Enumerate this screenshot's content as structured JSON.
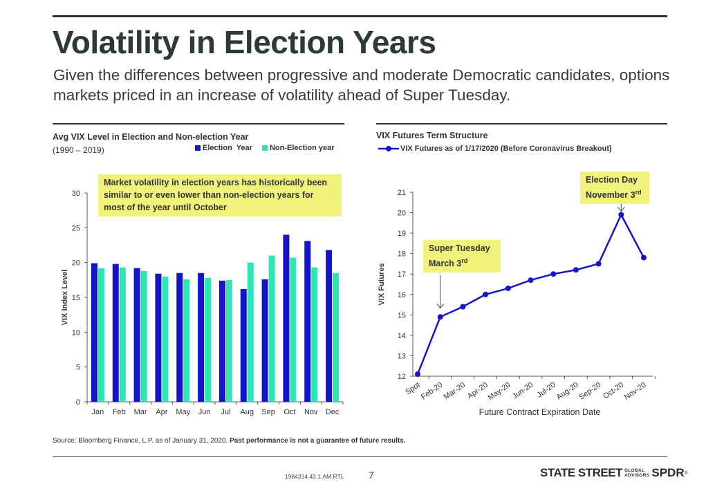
{
  "page": {
    "title": "Volatility in Election Years",
    "subtitle": "Given the differences between progressive and moderate Democratic candidates, options markets priced in an increase of volatility ahead of Super Tuesday.",
    "source": "Source: Bloomberg Finance, L.P. as of January 31, 2020. ",
    "disclaimer": "Past performance is not a guarantee of future results.",
    "doc_id": "1984314.43.1.AM.RTL",
    "page_number": "7",
    "brand": {
      "state_street": "STATE STREET",
      "global": "GLOBAL",
      "advisors": "ADVISORS",
      "spdr": "SPDR",
      "reg": "®"
    }
  },
  "colors": {
    "election": "#1414c8",
    "non_election": "#2de6b4",
    "line": "#1414c8",
    "callout": "#f0f27c",
    "title": "#2b3a33"
  },
  "chart_data": [
    {
      "type": "bar",
      "title": "Avg VIX Level in Election and Non-election Year",
      "subtitle": "(1990 – 2019)",
      "ylabel": "VIX Index Level",
      "xlabel": "",
      "ylim": [
        0,
        30
      ],
      "yticks": [
        0,
        5,
        10,
        15,
        20,
        25,
        30
      ],
      "legend_position": "top-right",
      "categories": [
        "Jan",
        "Feb",
        "Mar",
        "Apr",
        "May",
        "Jun",
        "Jul",
        "Aug",
        "Sep",
        "Oct",
        "Nov",
        "Dec"
      ],
      "series": [
        {
          "name": "Election  Year",
          "color": "#1414c8",
          "values": [
            19.9,
            19.8,
            19.2,
            18.4,
            18.5,
            18.5,
            17.4,
            16.2,
            17.6,
            24.0,
            23.1,
            21.8
          ]
        },
        {
          "name": "Non-Election year",
          "color": "#2de6b4",
          "values": [
            19.2,
            19.3,
            18.8,
            18.0,
            17.6,
            17.8,
            17.5,
            20.0,
            21.0,
            20.7,
            19.3,
            18.5
          ]
        }
      ],
      "annotation": "Market volatility in election years has historically been similar to or even lower than non-election years for most of the year until October"
    },
    {
      "type": "line",
      "title": "VIX Futures Term Structure",
      "xlabel": "Future Contract Expiration Date",
      "ylabel": "VIX Futures",
      "ylim": [
        12,
        21
      ],
      "yticks": [
        12,
        13,
        14,
        15,
        16,
        17,
        18,
        19,
        20,
        21
      ],
      "legend_position": "top",
      "categories": [
        "Spot",
        "Feb-20",
        "Mar-20",
        "Apr-20",
        "May-20",
        "Jun-20",
        "Jul-20",
        "Aug-20",
        "Sep-20",
        "Oct-20",
        "Nov-20"
      ],
      "series": [
        {
          "name": "VIX Futures as of 1/17/2020 (Before Coronavirus Breakout)",
          "color": "#1414c8",
          "values": [
            12.1,
            14.9,
            15.4,
            16.0,
            16.3,
            16.7,
            17.0,
            17.2,
            17.5,
            19.9,
            17.8
          ]
        }
      ],
      "annotations": [
        {
          "line1": "Super Tuesday",
          "line2": "March 3",
          "sup": "rd",
          "category": "Feb-20"
        },
        {
          "line1": "Election Day",
          "line2": "November 3",
          "sup": "rd",
          "category": "Oct-20"
        }
      ]
    }
  ]
}
